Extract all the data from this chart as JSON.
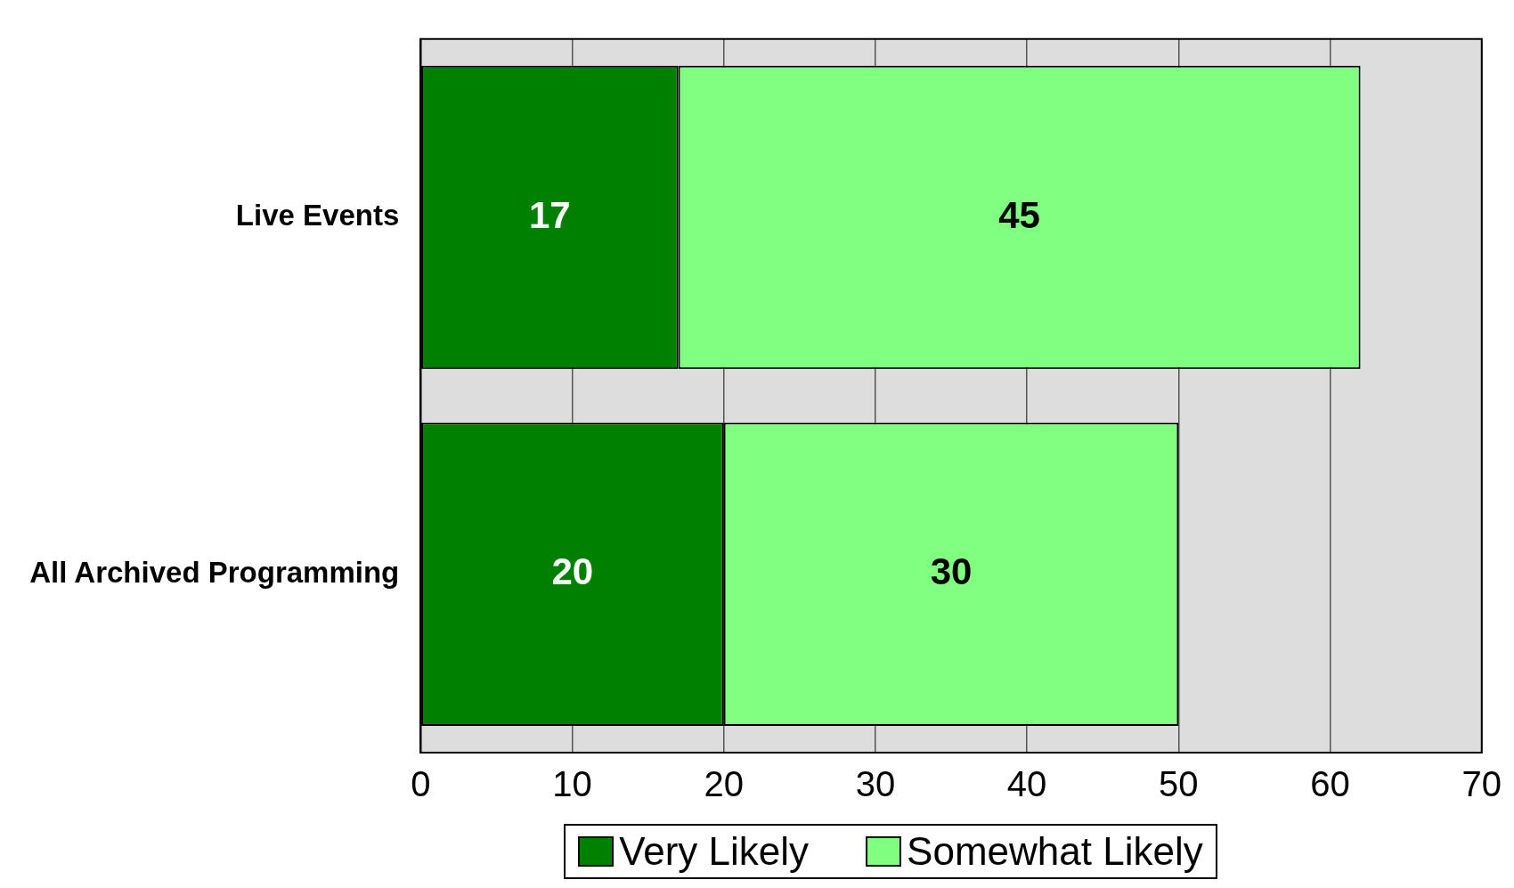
{
  "chart_data": {
    "type": "bar",
    "orientation": "horizontal",
    "stacked": true,
    "categories": [
      "Live Events",
      "All Archived Programming"
    ],
    "series": [
      {
        "name": "Very Likely",
        "color": "#008000",
        "values": [
          17,
          20
        ]
      },
      {
        "name": "Somewhat Likely",
        "color": "#80ff80",
        "values": [
          45,
          30
        ]
      }
    ],
    "xlim": [
      0,
      70
    ],
    "xticks": [
      0,
      10,
      20,
      30,
      40,
      50,
      60,
      70
    ],
    "grid": "x",
    "legend": "bottom",
    "data_labels": true
  }
}
